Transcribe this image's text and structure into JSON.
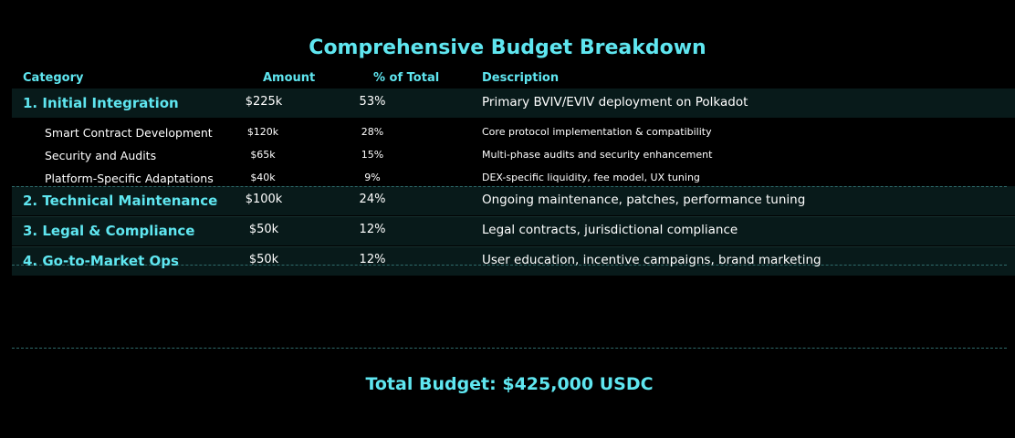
{
  "title": "Comprehensive Budget Breakdown",
  "colors": {
    "accent": "#5fe6f0",
    "background": "#000000",
    "row_band": "#081a1a",
    "separator": "#2e6b6b"
  },
  "columns": {
    "category": "Category",
    "amount": "Amount",
    "percent": "% of Total",
    "description": "Description"
  },
  "rows": [
    {
      "category": "1. Initial Integration",
      "amount": "$225k",
      "percent": "53%",
      "description": "Primary BVIV/EVIV deployment on Polkadot",
      "subitems": [
        {
          "category": "Smart Contract Development",
          "amount": "$120k",
          "percent": "28%",
          "description": "Core protocol implementation & compatibility"
        },
        {
          "category": "Security and Audits",
          "amount": "$65k",
          "percent": "15%",
          "description": "Multi-phase audits and security enhancement"
        },
        {
          "category": "Platform-Specific Adaptations",
          "amount": "$40k",
          "percent": "9%",
          "description": "DEX-specific liquidity, fee model, UX tuning"
        }
      ]
    },
    {
      "category": "2. Technical Maintenance",
      "amount": "$100k",
      "percent": "24%",
      "description": "Ongoing maintenance, patches, performance tuning"
    },
    {
      "category": "3. Legal & Compliance",
      "amount": "$50k",
      "percent": "12%",
      "description": "Legal contracts, jurisdictional compliance"
    },
    {
      "category": "4. Go-to-Market Ops",
      "amount": "$50k",
      "percent": "12%",
      "description": "User education, incentive campaigns, brand marketing"
    }
  ],
  "total": "Total Budget: $425,000 USDC"
}
